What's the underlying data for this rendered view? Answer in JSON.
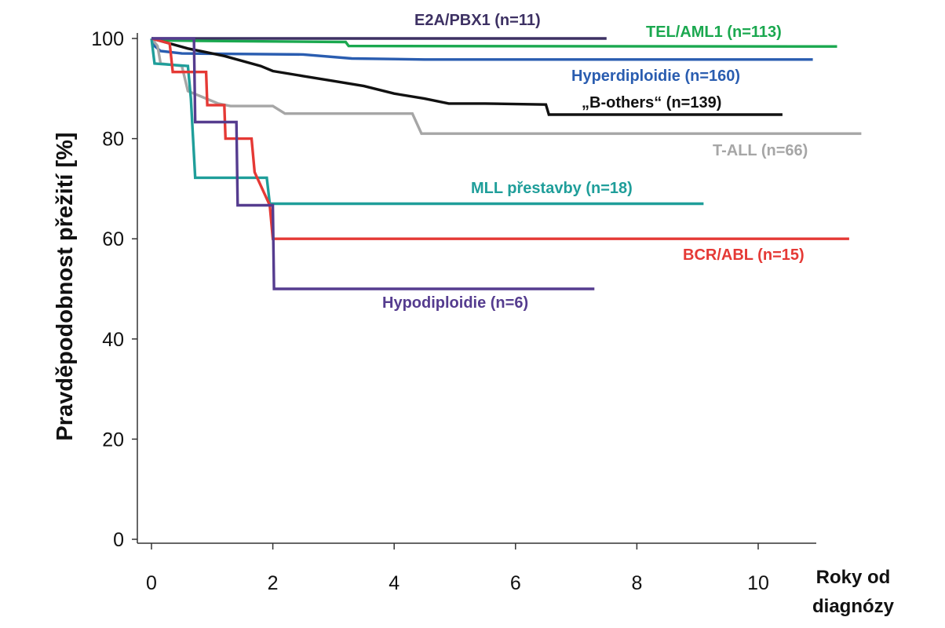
{
  "chart_data": {
    "type": "line",
    "ylabel": "Pravděpodobnost  přežití [%]",
    "xlabel_lines": [
      "Roky od",
      "diagnózy"
    ],
    "xlim": [
      0,
      12
    ],
    "ylim": [
      0,
      100
    ],
    "xticks": [
      0,
      2,
      4,
      6,
      8,
      10
    ],
    "yticks": [
      0,
      20,
      40,
      60,
      80,
      100
    ],
    "grid": false,
    "legend": "inline labels next to curves",
    "series": [
      {
        "name": "E2A/PBX1 (n=11)",
        "color": "#3d3163",
        "points": [
          [
            0,
            100
          ],
          [
            7.5,
            100
          ]
        ]
      },
      {
        "name": "TEL/AML1 (n=113)",
        "color": "#1aa84f",
        "points": [
          [
            0,
            100
          ],
          [
            0.3,
            99.6
          ],
          [
            1.0,
            99.5
          ],
          [
            3.2,
            99.3
          ],
          [
            3.25,
            98.5
          ],
          [
            11.3,
            98.4
          ]
        ]
      },
      {
        "name": "Hyperdiploidie (n=160)",
        "color": "#2a5db0",
        "points": [
          [
            0,
            100
          ],
          [
            0.05,
            98.5
          ],
          [
            0.15,
            97.5
          ],
          [
            0.5,
            97.0
          ],
          [
            2.5,
            96.8
          ],
          [
            3.3,
            96.0
          ],
          [
            4.5,
            95.8
          ],
          [
            10.9,
            95.8
          ]
        ]
      },
      {
        "name": "„B-others“ (n=139)",
        "color": "#111111",
        "points": [
          [
            0,
            100
          ],
          [
            0.3,
            99.0
          ],
          [
            0.6,
            98.0
          ],
          [
            1.2,
            96.5
          ],
          [
            1.8,
            94.5
          ],
          [
            2.0,
            93.5
          ],
          [
            2.5,
            92.5
          ],
          [
            3.0,
            91.5
          ],
          [
            3.5,
            90.5
          ],
          [
            4.0,
            89.0
          ],
          [
            4.5,
            88.0
          ],
          [
            4.9,
            87.0
          ],
          [
            5.5,
            87.0
          ],
          [
            6.5,
            86.8
          ],
          [
            6.55,
            84.8
          ],
          [
            10.4,
            84.8
          ]
        ]
      },
      {
        "name": "T-ALL (n=66)",
        "color": "#a6a6a6",
        "points": [
          [
            0,
            100
          ],
          [
            0.1,
            98.5
          ],
          [
            0.15,
            95.0
          ],
          [
            0.5,
            94.5
          ],
          [
            0.6,
            89.5
          ],
          [
            1.1,
            87.0
          ],
          [
            1.3,
            86.5
          ],
          [
            2.0,
            86.5
          ],
          [
            2.2,
            85.0
          ],
          [
            4.3,
            85.0
          ],
          [
            4.45,
            81.0
          ],
          [
            11.7,
            81.0
          ]
        ]
      },
      {
        "name": "MLL přestavby (n=18)",
        "color": "#1f9e9a",
        "points": [
          [
            0,
            100
          ],
          [
            0.05,
            95.0
          ],
          [
            0.6,
            94.5
          ],
          [
            0.65,
            88.0
          ],
          [
            0.72,
            72.2
          ],
          [
            1.9,
            72.2
          ],
          [
            1.95,
            67.0
          ],
          [
            9.1,
            67.0
          ]
        ]
      },
      {
        "name": "BCR/ABL (n=15)",
        "color": "#e53935",
        "points": [
          [
            0,
            100
          ],
          [
            0.3,
            99.0
          ],
          [
            0.35,
            93.3
          ],
          [
            0.9,
            93.3
          ],
          [
            0.92,
            86.7
          ],
          [
            1.2,
            86.7
          ],
          [
            1.22,
            80.0
          ],
          [
            1.65,
            80.0
          ],
          [
            1.7,
            73.3
          ],
          [
            1.95,
            66.7
          ],
          [
            2.0,
            60.0
          ],
          [
            11.5,
            60.0
          ]
        ]
      },
      {
        "name": "Hypodiploidie (n=6)",
        "color": "#553c8f",
        "points": [
          [
            0,
            100
          ],
          [
            0.6,
            100
          ],
          [
            0.7,
            100
          ],
          [
            0.72,
            83.3
          ],
          [
            1.4,
            83.3
          ],
          [
            1.42,
            66.7
          ],
          [
            2.0,
            66.7
          ],
          [
            2.02,
            50.0
          ],
          [
            7.3,
            50.0
          ]
        ]
      }
    ]
  }
}
